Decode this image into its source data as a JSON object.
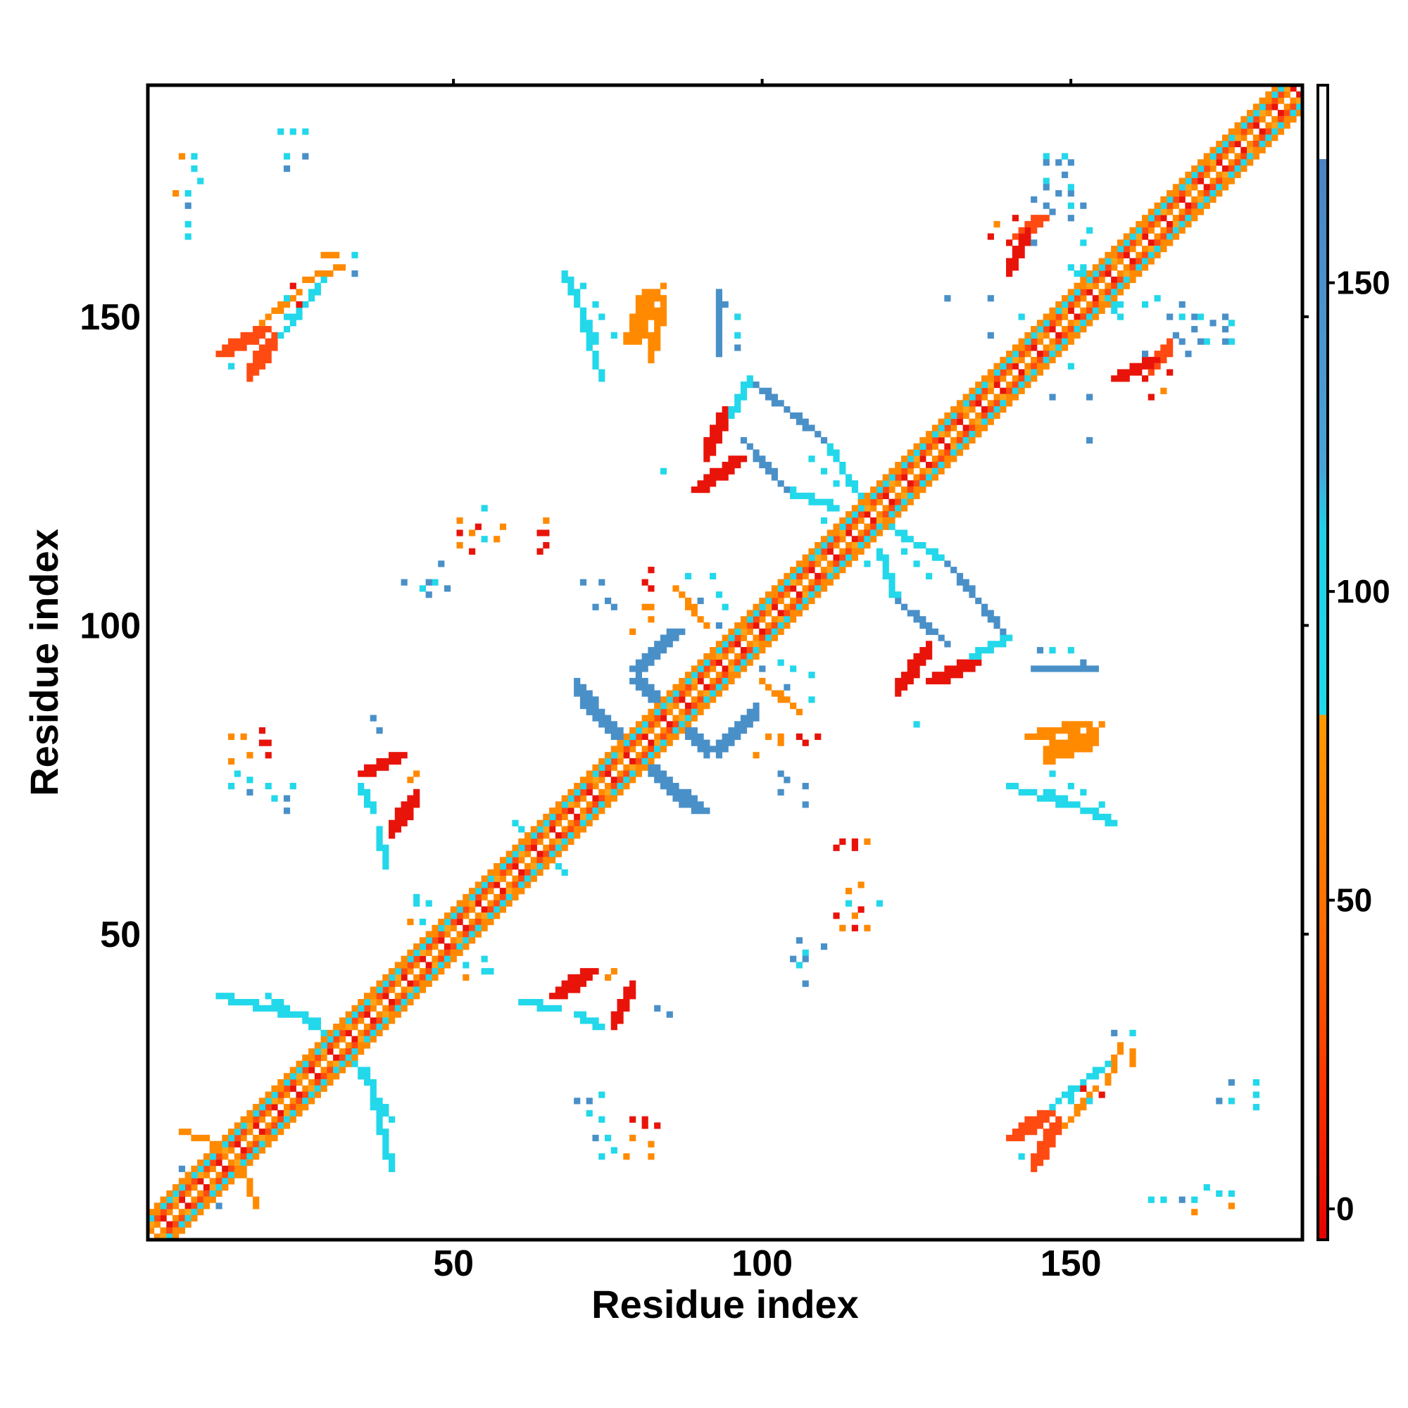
{
  "chart_data": {
    "type": "heatmap",
    "title": "",
    "xlabel": "Residue index",
    "ylabel": "Residue index",
    "xlim": [
      1,
      187
    ],
    "ylim": [
      1,
      187
    ],
    "xticks": [
      50,
      100,
      150
    ],
    "yticks": [
      50,
      100,
      150
    ],
    "colorbar": {
      "ticks": [
        0,
        50,
        100,
        150
      ],
      "range": [
        -5,
        182
      ],
      "stops": [
        {
          "value": -5,
          "color": "#e60000"
        },
        {
          "value": 20,
          "color": "#ff3300"
        },
        {
          "value": 45,
          "color": "#ff6a00"
        },
        {
          "value": 80,
          "color": "#ff9900"
        },
        {
          "value": 80.01,
          "color": "#22d8ea"
        },
        {
          "value": 110,
          "color": "#22cfe6"
        },
        {
          "value": 120,
          "color": "#4aa3d6"
        },
        {
          "value": 170,
          "color": "#4b84c4"
        },
        {
          "value": 170.01,
          "color": "#ffffff"
        },
        {
          "value": 182,
          "color": "#ffffff"
        }
      ]
    },
    "grid": false,
    "legend": "colorbar-right",
    "palette": {
      "red": "#e8140a",
      "red_orange": "#ff4a12",
      "orange": "#ff8a00",
      "orange_light": "#ffa31a",
      "cyan": "#22d8ea",
      "steel_blue": "#4a90c8"
    },
    "diagonal": {
      "from": 1,
      "to": 187,
      "bands": [
        {
          "offset": 0,
          "color": "white"
        },
        {
          "offset": 1,
          "color": "orange"
        },
        {
          "offset": 2,
          "color": "red_orange"
        },
        {
          "offset": 3,
          "color": "cyan"
        },
        {
          "offset": 4,
          "color": "orange"
        }
      ]
    },
    "features": [
      {
        "kind": "line",
        "from": [
          91,
          80
        ],
        "to": [
          80,
          91
        ],
        "width": 2.5,
        "color": "steel_blue"
      },
      {
        "kind": "line",
        "from": [
          77,
          82
        ],
        "to": [
          72,
          87
        ],
        "width": 2,
        "color": "steel_blue"
      },
      {
        "kind": "line",
        "from": [
          90,
          70
        ],
        "to": [
          85,
          74
        ],
        "width": 2,
        "color": "steel_blue"
      },
      {
        "kind": "line",
        "from": [
          80,
          93
        ],
        "to": [
          86,
          99
        ],
        "width": 2,
        "color": "steel_blue"
      },
      {
        "kind": "line",
        "from": [
          100,
          91
        ],
        "to": [
          106,
          86
        ],
        "width": 1.5,
        "color": "orange"
      },
      {
        "kind": "line",
        "from": [
          96,
          127
        ],
        "to": [
          90,
          122
        ],
        "width": 3,
        "color": "red"
      },
      {
        "kind": "line",
        "from": [
          97,
          130
        ],
        "to": [
          104,
          122
        ],
        "width": 1.5,
        "color": "steel_blue"
      },
      {
        "kind": "line",
        "from": [
          104,
          122
        ],
        "to": [
          112,
          119
        ],
        "width": 1.2,
        "color": "cyan"
      },
      {
        "kind": "line",
        "from": [
          128,
          91
        ],
        "to": [
          134,
          94
        ],
        "width": 3,
        "color": "red"
      },
      {
        "kind": "line",
        "from": [
          134,
          95
        ],
        "to": [
          140,
          98
        ],
        "width": 1.5,
        "color": "cyan"
      },
      {
        "kind": "line",
        "from": [
          140,
          98
        ],
        "to": [
          130,
          110
        ],
        "width": 1.5,
        "color": "steel_blue"
      },
      {
        "kind": "line",
        "from": [
          130,
          110
        ],
        "to": [
          121,
          116
        ],
        "width": 1.2,
        "color": "cyan"
      },
      {
        "kind": "line",
        "from": [
          36,
          76
        ],
        "to": [
          41,
          79
        ],
        "width": 3,
        "color": "red"
      },
      {
        "kind": "line",
        "from": [
          35,
          74
        ],
        "to": [
          37,
          70
        ],
        "width": 1.5,
        "color": "cyan"
      },
      {
        "kind": "line",
        "from": [
          67,
          40
        ],
        "to": [
          72,
          44
        ],
        "width": 3,
        "color": "red"
      },
      {
        "kind": "line",
        "from": [
          61,
          39
        ],
        "to": [
          67,
          38
        ],
        "width": 1.2,
        "color": "cyan"
      },
      {
        "kind": "line",
        "from": [
          13,
          144
        ],
        "to": [
          19,
          148
        ],
        "width": 2,
        "color": "red_orange"
      },
      {
        "kind": "line",
        "from": [
          19,
          149
        ],
        "to": [
          25,
          154
        ],
        "width": 1.2,
        "color": "orange"
      },
      {
        "kind": "line",
        "from": [
          26,
          156
        ],
        "to": [
          32,
          158
        ],
        "width": 1.2,
        "color": "orange"
      },
      {
        "kind": "line",
        "from": [
          79,
          146
        ],
        "to": [
          82,
          154
        ],
        "width": 2,
        "color": "orange"
      },
      {
        "kind": "line",
        "from": [
          68,
          157
        ],
        "to": [
          73,
          146
        ],
        "width": 1.2,
        "color": "cyan"
      },
      {
        "kind": "line",
        "from": [
          93,
          144
        ],
        "to": [
          93,
          154
        ],
        "width": 1.2,
        "color": "steel_blue"
      },
      {
        "kind": "line",
        "from": [
          158,
          140
        ],
        "to": [
          163,
          143
        ],
        "width": 2,
        "color": "red"
      },
      {
        "kind": "line",
        "from": [
          142,
          163
        ],
        "to": [
          145,
          166
        ],
        "width": 2,
        "color": "red_orange"
      },
      {
        "kind": "line",
        "from": [
          141,
          17
        ],
        "to": [
          146,
          21
        ],
        "width": 2,
        "color": "red_orange"
      },
      {
        "kind": "line",
        "from": [
          147,
          22
        ],
        "to": [
          157,
          30
        ],
        "width": 1.2,
        "color": "cyan"
      },
      {
        "kind": "line",
        "from": [
          144,
          82
        ],
        "to": [
          152,
          84
        ],
        "width": 2,
        "color": "orange"
      },
      {
        "kind": "line",
        "from": [
          140,
          74
        ],
        "to": [
          156,
          69
        ],
        "width": 1.2,
        "color": "cyan"
      },
      {
        "kind": "line",
        "from": [
          12,
          40
        ],
        "to": [
          28,
          36
        ],
        "width": 1.5,
        "color": "cyan"
      },
      {
        "kind": "line",
        "from": [
          34,
          29
        ],
        "to": [
          40,
          20
        ],
        "width": 1.5,
        "color": "cyan"
      },
      {
        "kind": "line",
        "from": [
          16,
          12
        ],
        "to": [
          18,
          6
        ],
        "width": 1.2,
        "color": "orange"
      },
      {
        "kind": "line",
        "from": [
          8,
          12
        ],
        "to": [
          12,
          6
        ],
        "width": 1.5,
        "color": "steel_blue"
      },
      {
        "kind": "line",
        "from": [
          44,
          46
        ],
        "to": [
          52,
          54
        ],
        "width": 1.5,
        "color": "cyan"
      },
      {
        "kind": "line",
        "from": [
          114,
          123
        ],
        "to": [
          120,
          117
        ],
        "width": 1.5,
        "color": "cyan"
      },
      {
        "kind": "line",
        "from": [
          150,
          158
        ],
        "to": [
          158,
          152
        ],
        "width": 1.5,
        "color": "cyan"
      },
      {
        "kind": "line",
        "from": [
          63,
          65
        ],
        "to": [
          68,
          60
        ],
        "width": 1.5,
        "color": "cyan"
      }
    ],
    "scatter_points": [
      [
        6,
        176,
        "orange"
      ],
      [
        8,
        176,
        "cyan"
      ],
      [
        8,
        174,
        "cyan"
      ],
      [
        9,
        172,
        "cyan"
      ],
      [
        22,
        180,
        "cyan"
      ],
      [
        24,
        180,
        "cyan"
      ],
      [
        26,
        180,
        "cyan"
      ],
      [
        23,
        176,
        "cyan"
      ],
      [
        29,
        160,
        "orange"
      ],
      [
        30,
        160,
        "orange"
      ],
      [
        31,
        160,
        "orange"
      ],
      [
        34,
        160,
        "cyan"
      ],
      [
        24,
        155,
        "red"
      ],
      [
        23,
        153,
        "cyan"
      ],
      [
        19,
        147,
        "red"
      ],
      [
        51,
        117,
        "orange"
      ],
      [
        53,
        115,
        "orange"
      ],
      [
        55,
        114,
        "cyan"
      ],
      [
        57,
        114,
        "orange"
      ],
      [
        64,
        115,
        "red"
      ],
      [
        64,
        112,
        "red"
      ],
      [
        53,
        112,
        "red"
      ],
      [
        42,
        107,
        "steel_blue"
      ],
      [
        45,
        106,
        "cyan"
      ],
      [
        46,
        105,
        "steel_blue"
      ],
      [
        71,
        107,
        "steel_blue"
      ],
      [
        73,
        103,
        "steel_blue"
      ],
      [
        76,
        103,
        "steel_blue"
      ],
      [
        81,
        107,
        "red"
      ],
      [
        81,
        103,
        "orange"
      ],
      [
        79,
        99,
        "orange"
      ],
      [
        88,
        108,
        "cyan"
      ],
      [
        90,
        104,
        "steel_blue"
      ],
      [
        93,
        100,
        "steel_blue"
      ],
      [
        14,
        82,
        "orange"
      ],
      [
        16,
        82,
        "orange"
      ],
      [
        19,
        83,
        "red"
      ],
      [
        19,
        81,
        "red"
      ],
      [
        15,
        76,
        "cyan"
      ],
      [
        17,
        75,
        "cyan"
      ],
      [
        20,
        74,
        "cyan"
      ],
      [
        24,
        74,
        "cyan"
      ],
      [
        37,
        85,
        "steel_blue"
      ],
      [
        43,
        75,
        "orange"
      ],
      [
        44,
        76,
        "orange"
      ],
      [
        44,
        55,
        "cyan"
      ],
      [
        46,
        55,
        "cyan"
      ],
      [
        43,
        52,
        "orange"
      ],
      [
        48,
        50,
        "steel_blue"
      ],
      [
        52,
        45,
        "cyan"
      ],
      [
        56,
        44,
        "cyan"
      ],
      [
        72,
        43,
        "orange"
      ],
      [
        83,
        38,
        "steel_blue"
      ],
      [
        70,
        23,
        "steel_blue"
      ],
      [
        72,
        23,
        "steel_blue"
      ],
      [
        72,
        21,
        "cyan"
      ],
      [
        73,
        17,
        "steel_blue"
      ],
      [
        74,
        14,
        "cyan"
      ],
      [
        78,
        14,
        "orange"
      ],
      [
        79,
        17,
        "orange"
      ],
      [
        79,
        20,
        "red"
      ],
      [
        81,
        20,
        "red"
      ],
      [
        101,
        82,
        "orange"
      ],
      [
        103,
        82,
        "orange"
      ],
      [
        106,
        82,
        "red"
      ],
      [
        109,
        82,
        "red"
      ],
      [
        104,
        75,
        "steel_blue"
      ],
      [
        107,
        74,
        "steel_blue"
      ],
      [
        103,
        94,
        "cyan"
      ],
      [
        105,
        93,
        "cyan"
      ],
      [
        108,
        92,
        "cyan"
      ],
      [
        113,
        65,
        "red"
      ],
      [
        115,
        65,
        "red"
      ],
      [
        117,
        65,
        "orange"
      ],
      [
        116,
        58,
        "orange"
      ],
      [
        114,
        55,
        "orange"
      ],
      [
        116,
        54,
        "red"
      ],
      [
        119,
        55,
        "cyan"
      ],
      [
        113,
        51,
        "orange"
      ],
      [
        115,
        51,
        "red"
      ],
      [
        106,
        49,
        "steel_blue"
      ],
      [
        107,
        47,
        "cyan"
      ],
      [
        110,
        48,
        "steel_blue"
      ],
      [
        107,
        46,
        "steel_blue"
      ],
      [
        125,
        84,
        "cyan"
      ],
      [
        155,
        84,
        "orange"
      ],
      [
        152,
        82,
        "orange"
      ],
      [
        147,
        76,
        "cyan"
      ],
      [
        150,
        74,
        "cyan"
      ],
      [
        152,
        73,
        "cyan"
      ],
      [
        155,
        71,
        "cyan"
      ],
      [
        145,
        96,
        "steel_blue"
      ],
      [
        147,
        96,
        "cyan"
      ],
      [
        150,
        96,
        "cyan"
      ],
      [
        152,
        94,
        "steel_blue"
      ],
      [
        110,
        117,
        "cyan"
      ],
      [
        113,
        114,
        "cyan"
      ],
      [
        125,
        110,
        "cyan"
      ],
      [
        127,
        108,
        "cyan"
      ],
      [
        123,
        112,
        "cyan"
      ],
      [
        146,
        176,
        "cyan"
      ],
      [
        149,
        176,
        "cyan"
      ],
      [
        146,
        172,
        "cyan"
      ],
      [
        148,
        170,
        "steel_blue"
      ],
      [
        150,
        170,
        "steel_blue"
      ],
      [
        144,
        169,
        "steel_blue"
      ],
      [
        146,
        168,
        "steel_blue"
      ],
      [
        150,
        166,
        "steel_blue"
      ],
      [
        152,
        168,
        "steel_blue"
      ],
      [
        138,
        165,
        "orange"
      ],
      [
        141,
        166,
        "red"
      ],
      [
        137,
        163,
        "red"
      ],
      [
        140,
        162,
        "red"
      ],
      [
        162,
        152,
        "cyan"
      ],
      [
        164,
        153,
        "cyan"
      ],
      [
        168,
        150,
        "cyan"
      ],
      [
        171,
        150,
        "cyan"
      ],
      [
        173,
        149,
        "steel_blue"
      ],
      [
        175,
        150,
        "steel_blue"
      ],
      [
        175,
        148,
        "steel_blue"
      ],
      [
        167,
        147,
        "steel_blue"
      ],
      [
        171,
        146,
        "steel_blue"
      ],
      [
        175,
        146,
        "steel_blue"
      ],
      [
        162,
        144,
        "steel_blue"
      ],
      [
        139,
        141,
        "steel_blue"
      ],
      [
        142,
        150,
        "cyan"
      ],
      [
        147,
        137,
        "steel_blue"
      ],
      [
        137,
        153,
        "steel_blue"
      ],
      [
        130,
        153,
        "steel_blue"
      ],
      [
        166,
        165,
        "steel_blue"
      ],
      [
        168,
        165,
        "steel_blue"
      ],
      [
        163,
        7,
        "cyan"
      ],
      [
        165,
        7,
        "cyan"
      ],
      [
        168,
        7,
        "steel_blue"
      ],
      [
        170,
        7,
        "cyan"
      ],
      [
        170,
        5,
        "orange"
      ],
      [
        174,
        23,
        "steel_blue"
      ],
      [
        176,
        26,
        "steel_blue"
      ],
      [
        176,
        23,
        "cyan"
      ],
      [
        152,
        25,
        "red"
      ],
      [
        150,
        23,
        "cyan"
      ],
      [
        148,
        19,
        "orange"
      ],
      [
        145,
        19,
        "cyan"
      ],
      [
        142,
        14,
        "cyan"
      ],
      [
        157,
        34,
        "steel_blue"
      ]
    ]
  }
}
